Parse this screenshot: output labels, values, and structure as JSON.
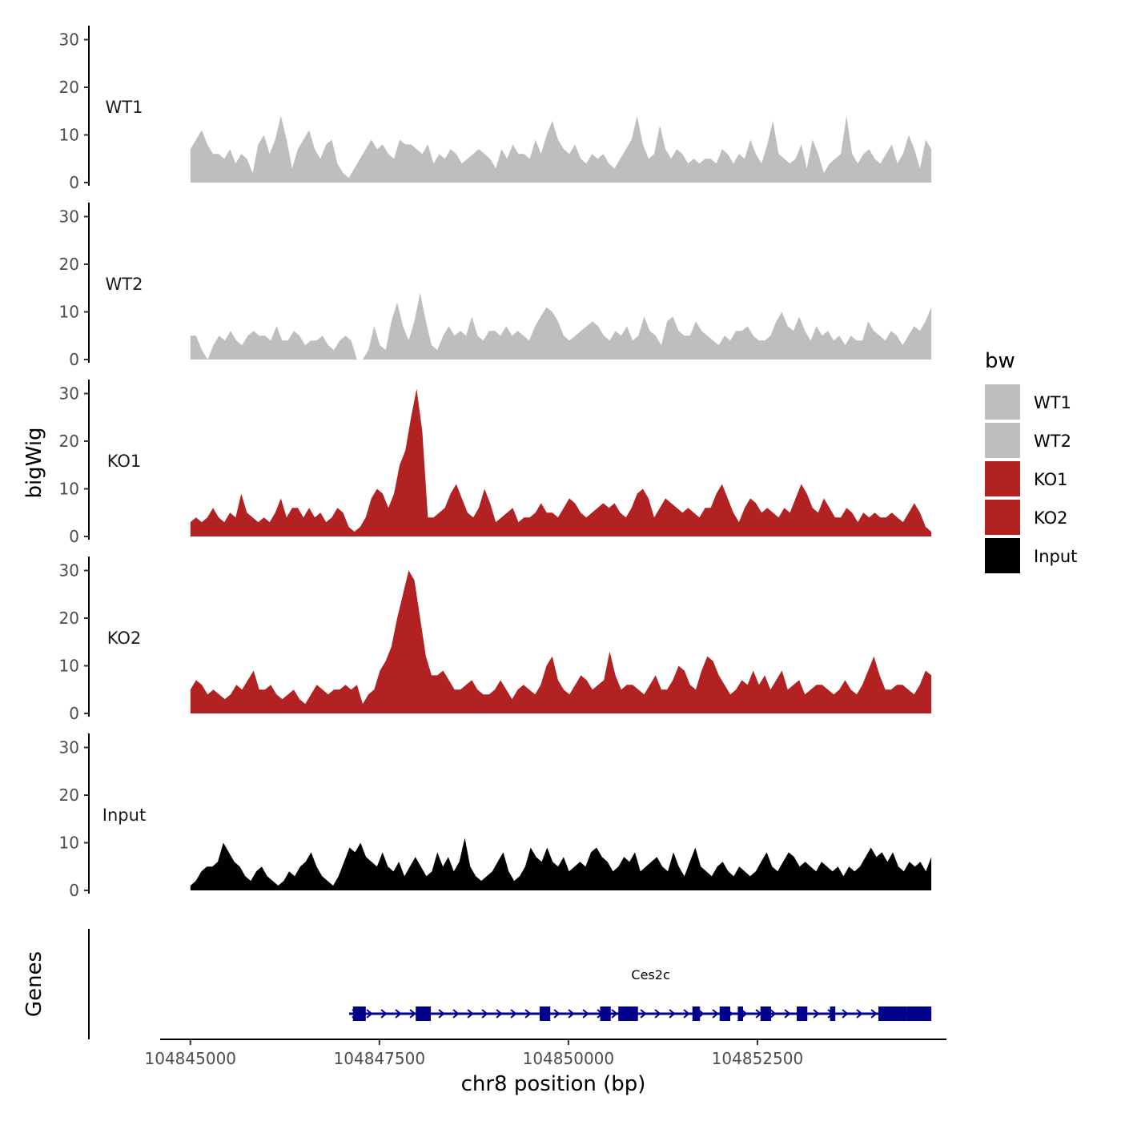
{
  "chart_data": {
    "type": "area",
    "ylabel": "bigWig",
    "xlabel": "chr8 position (bp)",
    "genes_label": "Genes",
    "x_range": [
      104845000,
      104854800
    ],
    "xlim": [
      104844600,
      104855000
    ],
    "x_ticks": [
      104845000,
      104847500,
      104850000,
      104852500
    ],
    "x_tick_labels": [
      "104845000",
      "104847500",
      "104850000",
      "104852500"
    ],
    "ylim": [
      0,
      32
    ],
    "y_ticks": [
      0,
      10,
      20,
      30
    ],
    "y_tick_labels": [
      "0",
      "10",
      "20",
      "30"
    ],
    "legend": {
      "title": "bw",
      "entries": [
        {
          "label": "WT1",
          "color": "#bebebe"
        },
        {
          "label": "WT2",
          "color": "#bebebe"
        },
        {
          "label": "KO1",
          "color": "#b22222"
        },
        {
          "label": "KO2",
          "color": "#b22222"
        },
        {
          "label": "Input",
          "color": "#000000"
        }
      ]
    },
    "series": [
      {
        "name": "WT1",
        "color": "#bebebe",
        "values": [
          7,
          9,
          11,
          8,
          6,
          6,
          5,
          7,
          4,
          6,
          5,
          2,
          8,
          10,
          6,
          9,
          14,
          9,
          3,
          7,
          9,
          11,
          7,
          5,
          8,
          9,
          4,
          2,
          1,
          3,
          5,
          7,
          9,
          7,
          8,
          6,
          5,
          9,
          8,
          8,
          7,
          6,
          8,
          4,
          6,
          5,
          7,
          6,
          4,
          5,
          6,
          7,
          6,
          5,
          3,
          7,
          5,
          8,
          6,
          6,
          5,
          9,
          6,
          10,
          13,
          9,
          7,
          6,
          8,
          5,
          4,
          6,
          5,
          6,
          4,
          3,
          5,
          7,
          9,
          14,
          8,
          5,
          6,
          12,
          7,
          5,
          7,
          6,
          4,
          5,
          4,
          5,
          5,
          4,
          7,
          6,
          4,
          6,
          5,
          9,
          6,
          4,
          8,
          13,
          6,
          5,
          4,
          5,
          8,
          3,
          9,
          6,
          2,
          4,
          5,
          6,
          14,
          6,
          4,
          6,
          7,
          5,
          4,
          6,
          8,
          4,
          6,
          10,
          7,
          3,
          9,
          7
        ]
      },
      {
        "name": "WT2",
        "color": "#bebebe",
        "values": [
          5,
          5,
          2,
          0,
          3,
          5,
          4,
          6,
          4,
          3,
          5,
          6,
          5,
          5,
          4,
          7,
          4,
          4,
          6,
          5,
          3,
          4,
          4,
          5,
          3,
          2,
          4,
          5,
          4,
          0,
          0,
          2,
          7,
          3,
          2,
          8,
          12,
          7,
          4,
          8,
          14,
          8,
          3,
          2,
          5,
          7,
          5,
          6,
          5,
          9,
          5,
          4,
          6,
          6,
          5,
          7,
          5,
          6,
          5,
          4,
          7,
          9,
          11,
          10,
          8,
          5,
          4,
          5,
          6,
          7,
          8,
          7,
          5,
          4,
          6,
          5,
          7,
          4,
          5,
          9,
          6,
          5,
          3,
          8,
          9,
          6,
          5,
          5,
          8,
          6,
          5,
          4,
          3,
          5,
          4,
          6,
          6,
          7,
          5,
          4,
          4,
          5,
          8,
          10,
          7,
          6,
          9,
          6,
          4,
          7,
          5,
          6,
          4,
          5,
          3,
          5,
          4,
          4,
          8,
          6,
          5,
          4,
          6,
          5,
          3,
          5,
          7,
          6,
          8,
          11
        ]
      },
      {
        "name": "KO1",
        "color": "#b22222",
        "values": [
          3,
          4,
          3,
          4,
          6,
          4,
          3,
          5,
          4,
          9,
          5,
          4,
          3,
          4,
          3,
          5,
          8,
          4,
          6,
          6,
          4,
          6,
          4,
          5,
          3,
          4,
          6,
          5,
          2,
          1,
          2,
          4,
          8,
          10,
          9,
          6,
          9,
          15,
          18,
          25,
          31,
          22,
          4,
          4,
          5,
          6,
          9,
          11,
          8,
          5,
          4,
          6,
          10,
          7,
          3,
          4,
          5,
          6,
          3,
          4,
          4,
          5,
          7,
          5,
          5,
          4,
          6,
          8,
          7,
          5,
          4,
          5,
          6,
          7,
          6,
          7,
          5,
          4,
          6,
          9,
          10,
          8,
          4,
          6,
          8,
          7,
          6,
          5,
          6,
          5,
          4,
          6,
          6,
          9,
          11,
          8,
          5,
          3,
          6,
          8,
          7,
          5,
          6,
          5,
          4,
          6,
          5,
          8,
          11,
          9,
          6,
          5,
          8,
          6,
          4,
          4,
          6,
          5,
          3,
          5,
          4,
          5,
          4,
          4,
          5,
          4,
          3,
          5,
          7,
          5,
          2,
          1
        ]
      },
      {
        "name": "KO2",
        "color": "#b22222",
        "values": [
          5,
          7,
          6,
          4,
          5,
          4,
          3,
          4,
          6,
          5,
          7,
          9,
          5,
          5,
          6,
          4,
          3,
          4,
          5,
          3,
          2,
          4,
          6,
          5,
          4,
          5,
          5,
          6,
          5,
          6,
          2,
          4,
          5,
          9,
          11,
          14,
          20,
          25,
          30,
          28,
          20,
          12,
          8,
          8,
          9,
          7,
          5,
          5,
          6,
          7,
          5,
          4,
          4,
          5,
          7,
          5,
          3,
          5,
          6,
          5,
          4,
          6,
          10,
          12,
          7,
          5,
          4,
          6,
          8,
          7,
          5,
          6,
          7,
          13,
          8,
          5,
          6,
          6,
          5,
          4,
          6,
          8,
          5,
          5,
          7,
          10,
          9,
          6,
          5,
          9,
          12,
          11,
          8,
          6,
          4,
          5,
          7,
          6,
          9,
          6,
          8,
          5,
          7,
          9,
          5,
          6,
          7,
          4,
          5,
          6,
          6,
          5,
          4,
          5,
          7,
          5,
          4,
          6,
          9,
          12,
          8,
          5,
          5,
          6,
          6,
          5,
          4,
          6,
          9,
          8
        ]
      },
      {
        "name": "Input",
        "color": "#000000",
        "values": [
          1,
          2,
          4,
          5,
          5,
          6,
          10,
          8,
          6,
          5,
          3,
          2,
          4,
          5,
          3,
          2,
          1,
          2,
          4,
          3,
          5,
          6,
          8,
          5,
          3,
          2,
          1,
          3,
          6,
          9,
          8,
          10,
          7,
          6,
          5,
          8,
          5,
          4,
          6,
          3,
          5,
          7,
          5,
          3,
          4,
          8,
          5,
          7,
          4,
          6,
          11,
          5,
          3,
          2,
          3,
          4,
          6,
          8,
          4,
          2,
          3,
          5,
          9,
          7,
          6,
          9,
          6,
          5,
          7,
          4,
          5,
          6,
          5,
          8,
          9,
          7,
          6,
          4,
          5,
          7,
          6,
          8,
          4,
          5,
          6,
          7,
          5,
          4,
          8,
          5,
          3,
          6,
          9,
          5,
          4,
          3,
          5,
          6,
          4,
          3,
          5,
          4,
          3,
          4,
          6,
          8,
          5,
          4,
          6,
          8,
          7,
          5,
          6,
          5,
          4,
          6,
          5,
          4,
          5,
          3,
          5,
          4,
          5,
          7,
          9,
          7,
          8,
          6,
          8,
          5,
          4,
          6,
          5,
          6,
          4,
          7
        ]
      }
    ],
    "gene": {
      "name": "Ces2c",
      "color": "#00008b",
      "start": 104847100,
      "end": 104854800,
      "strand": "+",
      "exons": [
        [
          104847150,
          104847320
        ],
        [
          104847980,
          104848180
        ],
        [
          104849620,
          104849760
        ],
        [
          104850420,
          104850560
        ],
        [
          104850660,
          104850920
        ],
        [
          104851640,
          104851740
        ],
        [
          104852000,
          104852140
        ],
        [
          104852240,
          104852310
        ],
        [
          104852540,
          104852680
        ],
        [
          104853020,
          104853160
        ],
        [
          104853460,
          104853530
        ],
        [
          104854100,
          104854480
        ],
        [
          104854480,
          104854800
        ]
      ]
    }
  }
}
